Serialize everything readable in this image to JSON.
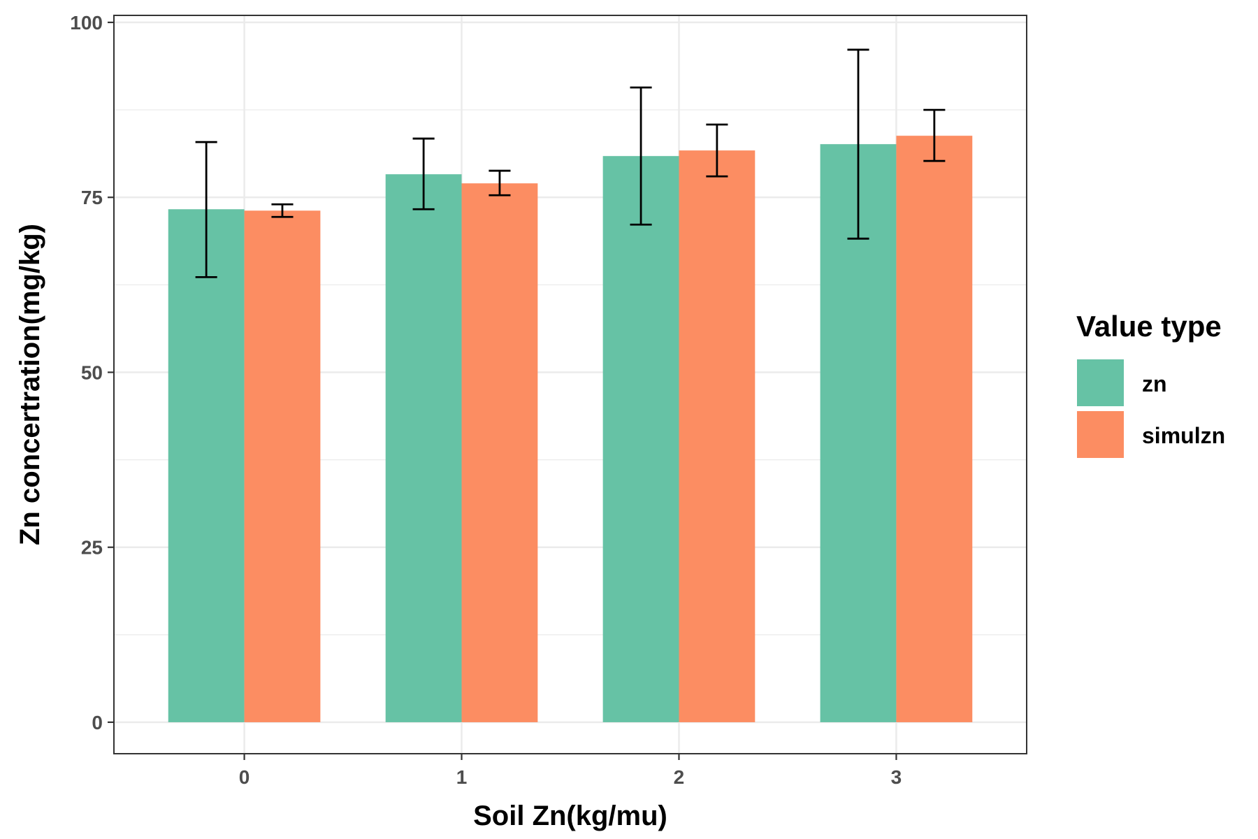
{
  "chart_data": {
    "type": "bar",
    "title": "",
    "xlabel": "Soil Zn(kg/mu)",
    "ylabel": "Zn concertration(mg/kg)",
    "categories": [
      "0",
      "1",
      "2",
      "3"
    ],
    "ylim": [
      -4.5,
      101
    ],
    "yticks": [
      0,
      25,
      50,
      75,
      100
    ],
    "ytick_labels": [
      "0",
      "25",
      "50",
      "75",
      "100"
    ],
    "grid": true,
    "legend_title": "Value type",
    "legend_position": "right",
    "series": [
      {
        "name": "zn",
        "color": "#66c2a5",
        "values": [
          73.3,
          78.3,
          80.9,
          82.6
        ],
        "err_low": [
          63.6,
          73.3,
          71.1,
          69.1
        ],
        "err_high": [
          82.9,
          83.4,
          90.7,
          96.1
        ]
      },
      {
        "name": "simulzn",
        "color": "#fc8d62",
        "values": [
          73.1,
          77.0,
          81.7,
          83.8
        ],
        "err_low": [
          72.2,
          75.3,
          78.0,
          80.2
        ],
        "err_high": [
          74.0,
          78.8,
          85.4,
          87.5
        ]
      }
    ]
  }
}
